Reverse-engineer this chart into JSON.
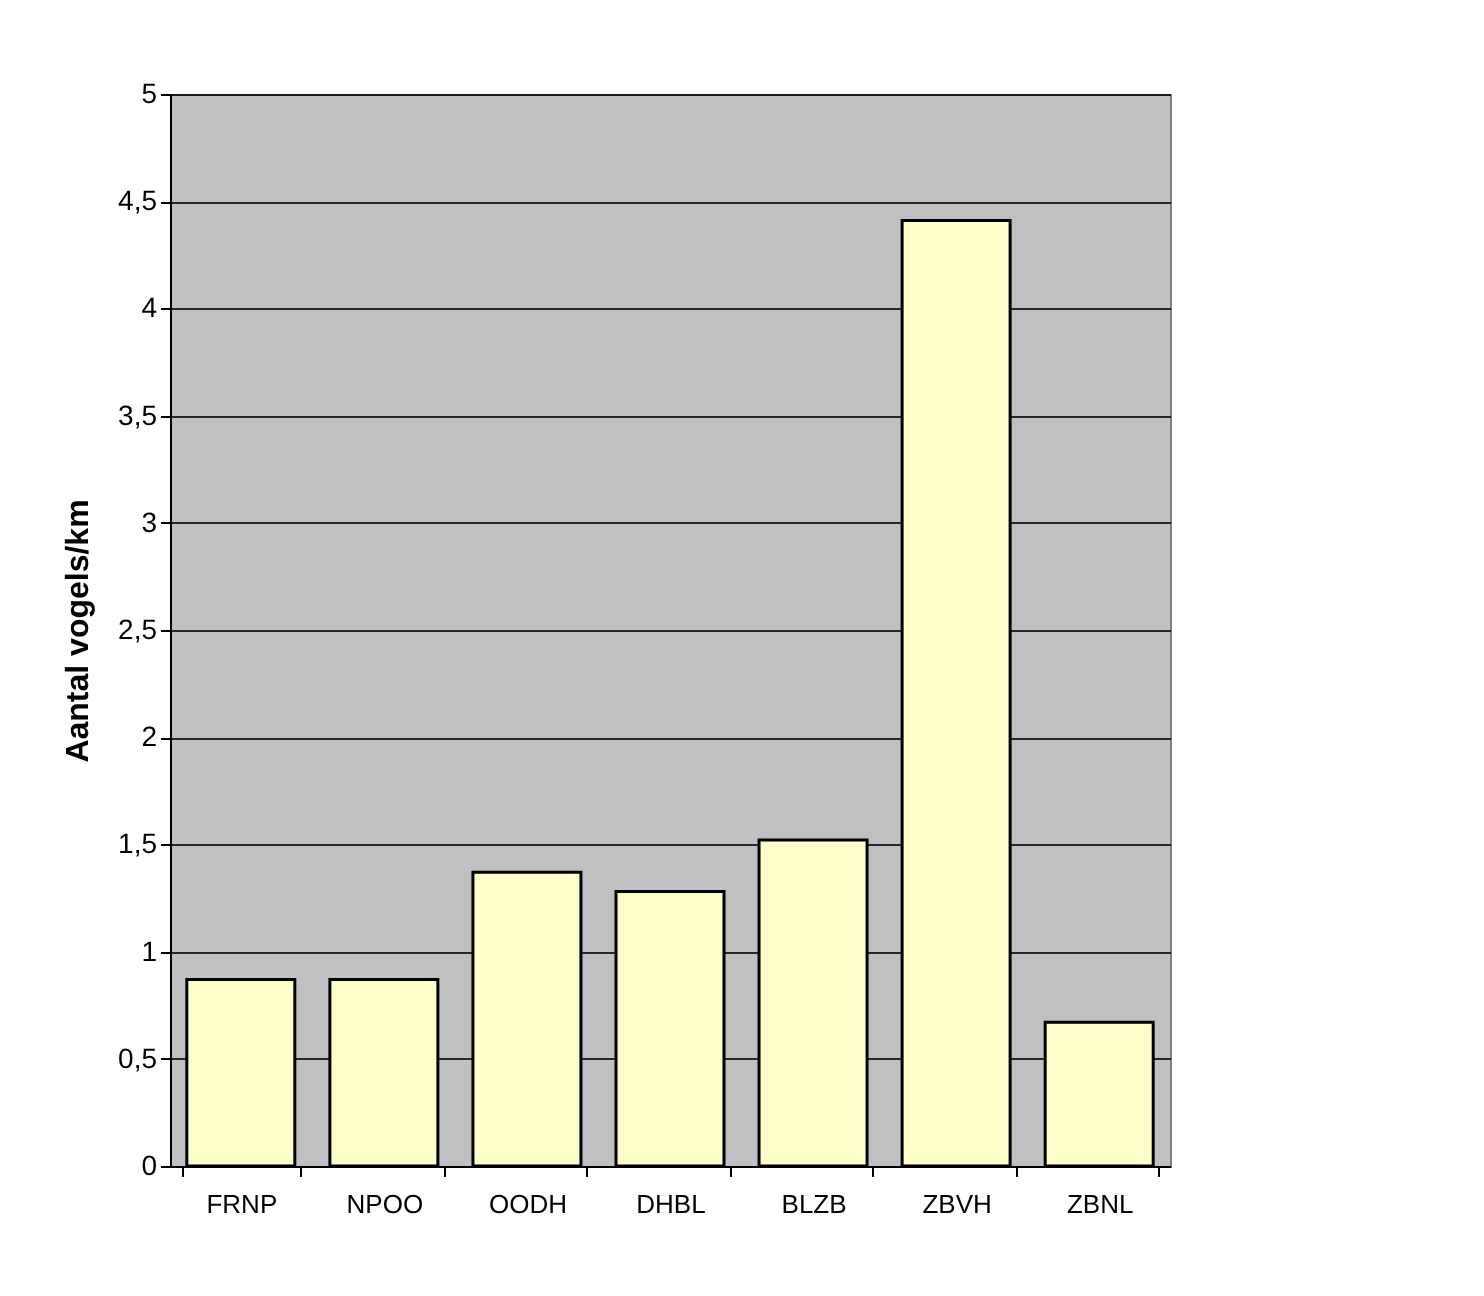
{
  "chart_data": {
    "type": "bar",
    "ylabel": "Aantal vogels/km",
    "categories": [
      "FRNP",
      "NPOO",
      "OODH",
      "DHBL",
      "BLZB",
      "ZBVH",
      "ZBNL"
    ],
    "values": [
      0.87,
      0.87,
      1.37,
      1.28,
      1.52,
      4.41,
      0.67
    ],
    "color": "#ffffcc",
    "ylim": [
      0,
      5
    ],
    "yticks": [
      0,
      {
        "value": 0.5,
        "label": "0,5"
      },
      1,
      {
        "value": 1.5,
        "label": "1,5"
      },
      2,
      {
        "value": 2.5,
        "label": "2,5"
      },
      3,
      {
        "value": 3.5,
        "label": "3,5"
      },
      4,
      {
        "value": 4.5,
        "label": "4,5"
      },
      5
    ],
    "grid": "y"
  }
}
